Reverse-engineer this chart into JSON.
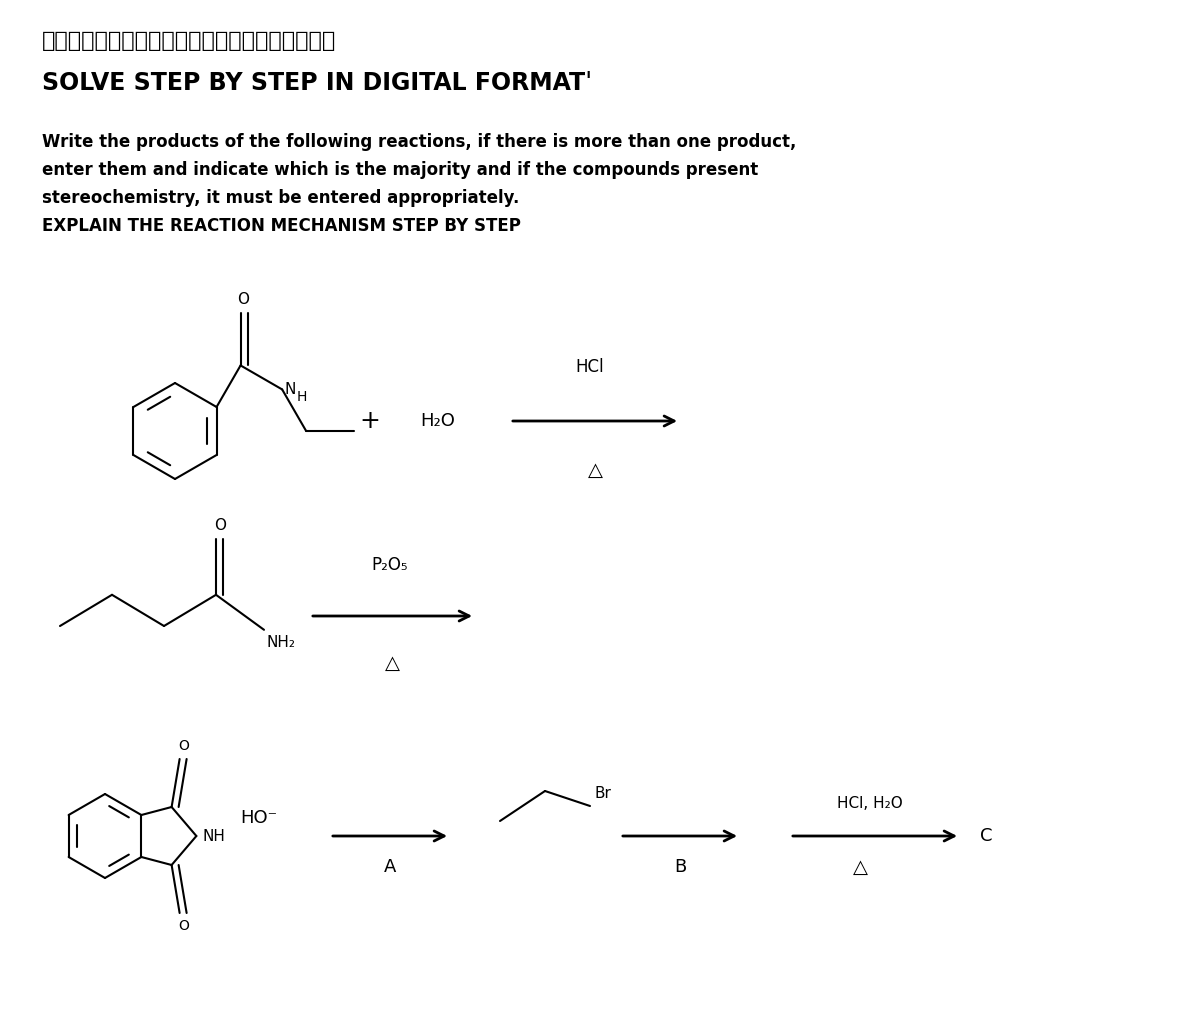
{
  "bg_color": "#ffffff",
  "title_jp": "デジタル形式で段階的に解決　　ありがとう！！",
  "title_en": "SOLVE STEP BY STEP IN DIGITAL FORMATˈ",
  "body_line1": "Write the products of the following reactions, if there is more than one product,",
  "body_line2": "enter them and indicate which is the majority and if the compounds present",
  "body_line3": "stereochemistry, it must be entered appropriately.",
  "body_line4": "EXPLAIN THE REACTION MECHANISM STEP BY STEP",
  "font_color": "#000000"
}
